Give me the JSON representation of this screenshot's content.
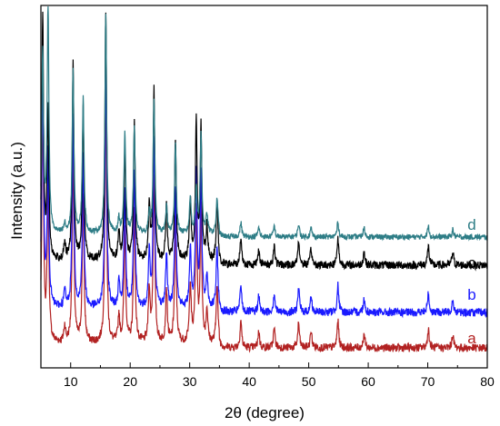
{
  "chart_data": {
    "type": "line",
    "title": "",
    "xlabel": "2θ (degree)",
    "ylabel": "Intensity (a.u.)",
    "xlim": [
      5,
      80
    ],
    "xticks": [
      "10",
      "20",
      "30",
      "40",
      "50",
      "60",
      "70",
      "80"
    ],
    "xtick_values": [
      10,
      20,
      30,
      40,
      50,
      60,
      70,
      80
    ],
    "grid": false,
    "y_ticks_shown": false,
    "peaks_2theta": [
      5.3,
      6.2,
      9.0,
      10.4,
      12.1,
      15.9,
      18.1,
      19.1,
      20.7,
      23.2,
      24.0,
      26.1,
      27.6,
      30.1,
      31.1,
      31.9,
      32.9,
      34.6,
      38.6,
      41.6,
      44.2,
      48.3,
      50.4,
      54.9,
      59.3,
      70.1,
      74.2
    ],
    "series": [
      {
        "name": "a",
        "color": "#b22222",
        "peak_heights_au": [
          0.9,
          0.55,
          0.06,
          0.72,
          0.55,
          0.92,
          0.1,
          0.42,
          0.5,
          0.2,
          0.62,
          0.2,
          0.45,
          0.22,
          0.5,
          0.48,
          0.12,
          0.22,
          0.1,
          0.06,
          0.07,
          0.09,
          0.06,
          0.1,
          0.05,
          0.07,
          0.05
        ]
      },
      {
        "name": "b",
        "color": "#1a1aff",
        "peak_heights_au": [
          0.9,
          0.55,
          0.06,
          0.72,
          0.55,
          0.92,
          0.1,
          0.42,
          0.5,
          0.2,
          0.62,
          0.2,
          0.45,
          0.22,
          0.5,
          0.48,
          0.12,
          0.22,
          0.1,
          0.06,
          0.07,
          0.09,
          0.06,
          0.1,
          0.05,
          0.07,
          0.05
        ]
      },
      {
        "name": "c",
        "color": "#000000",
        "peak_heights_au": [
          0.9,
          0.55,
          0.06,
          0.72,
          0.55,
          0.92,
          0.1,
          0.42,
          0.5,
          0.2,
          0.62,
          0.2,
          0.45,
          0.22,
          0.5,
          0.48,
          0.12,
          0.22,
          0.1,
          0.06,
          0.07,
          0.09,
          0.06,
          0.1,
          0.05,
          0.07,
          0.05
        ]
      },
      {
        "name": "d",
        "color": "#2e7d86",
        "peak_heights_au": [
          1.0,
          1.25,
          0.05,
          0.9,
          0.75,
          1.2,
          0.08,
          0.55,
          0.6,
          0.1,
          0.75,
          0.15,
          0.5,
          0.2,
          0.25,
          0.55,
          0.1,
          0.2,
          0.08,
          0.05,
          0.06,
          0.07,
          0.05,
          0.08,
          0.05,
          0.06,
          0.04
        ]
      }
    ]
  }
}
